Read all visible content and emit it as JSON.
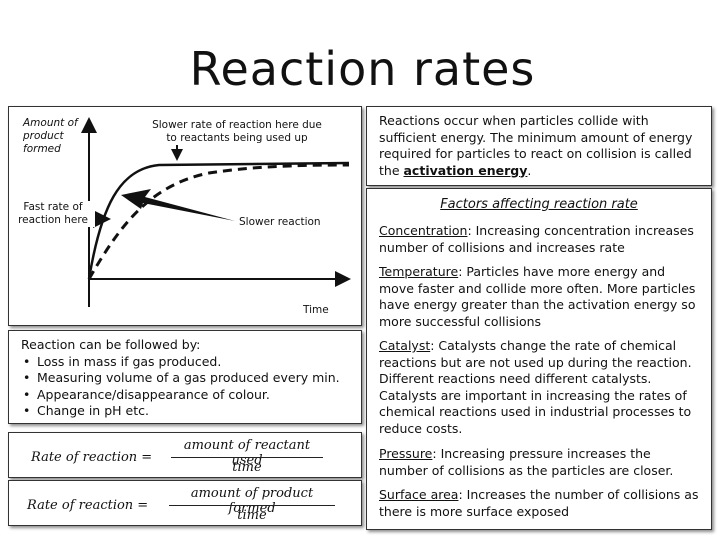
{
  "title": "Reaction rates",
  "graph": {
    "y_axis_label": "Amount of product formed",
    "x_axis_label": "Time",
    "annotation_top": "Slower rate of reaction here due to reactants being used up",
    "annotation_fast": "Fast rate of reaction here",
    "annotation_slow": "Slower reaction"
  },
  "intro": {
    "text": "Reactions occur when particles collide with sufficient energy. The minimum amount of energy required for particles to react on collision is called the",
    "term": "activation energy",
    "end": "."
  },
  "factors": {
    "heading": "Factors affecting reaction rate",
    "items": [
      {
        "name": "Concentration",
        "text": ": Increasing concentration increases number of collisions and increases rate"
      },
      {
        "name": "Temperature",
        "text": ": Particles have more energy and move faster and collide more often. More particles have energy greater than the activation  energy so more successful collisions"
      },
      {
        "name": "Catalyst",
        "text": ": Catalysts change the rate of chemical reactions but are not used up during the reaction. Different reactions need different catalysts. Catalysts are important in increasing the rates of chemical reactions used in industrial processes to reduce costs."
      },
      {
        "name": "Pressure",
        "text": ": Increasing pressure increases the number of collisions as the particles are closer."
      },
      {
        "name": "Surface area",
        "text": ": Increases the number of collisions as there is more surface exposed"
      }
    ]
  },
  "follow": {
    "heading": "Reaction can be followed by:",
    "items": [
      "Loss in mass if gas produced.",
      "Measuring volume of a gas produced every min.",
      "Appearance/disappearance of colour.",
      "Change in pH etc."
    ]
  },
  "formulas": [
    {
      "lhs": "Rate of reaction =",
      "numerator": "amount of reactant used",
      "denominator": "time"
    },
    {
      "lhs": "Rate of reaction =",
      "numerator": "amount of product formed",
      "denominator": "time"
    }
  ]
}
